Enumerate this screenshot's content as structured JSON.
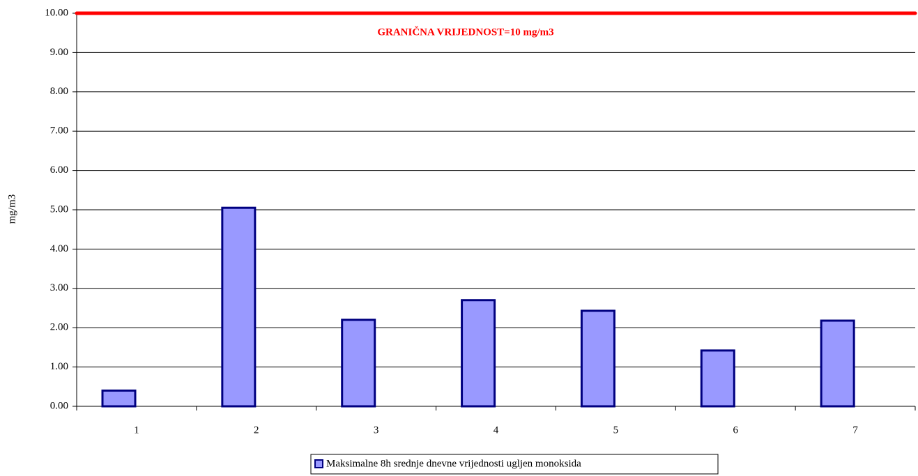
{
  "chart_data": {
    "type": "bar",
    "y_label": "mg/m3",
    "annotation": "GRANIČNA VRIJEDNOST=10 mg/m3",
    "limit": 10,
    "limit_color": "#ff0000",
    "categories": [
      "1",
      "2",
      "3",
      "4",
      "5",
      "6",
      "7"
    ],
    "series": [
      {
        "name": "Maksimalne 8h srednje dnevne vrijednosti ugljen monoksida",
        "color": "#9999ff",
        "values": [
          0.4,
          5.05,
          2.2,
          2.7,
          2.43,
          1.42,
          2.18
        ]
      }
    ],
    "ylim": [
      0,
      10
    ],
    "yticks": [
      {
        "value": 0,
        "label": "0.00"
      },
      {
        "value": 1,
        "label": "1.00"
      },
      {
        "value": 2,
        "label": "2.00"
      },
      {
        "value": 3,
        "label": "3.00"
      },
      {
        "value": 4,
        "label": "4.00"
      },
      {
        "value": 5,
        "label": "5.00"
      },
      {
        "value": 6,
        "label": "6.00"
      },
      {
        "value": 7,
        "label": "7.00"
      },
      {
        "value": 8,
        "label": "8.00"
      },
      {
        "value": 9,
        "label": "9.00"
      },
      {
        "value": 10,
        "label": "10.00"
      }
    ],
    "grid": true
  }
}
